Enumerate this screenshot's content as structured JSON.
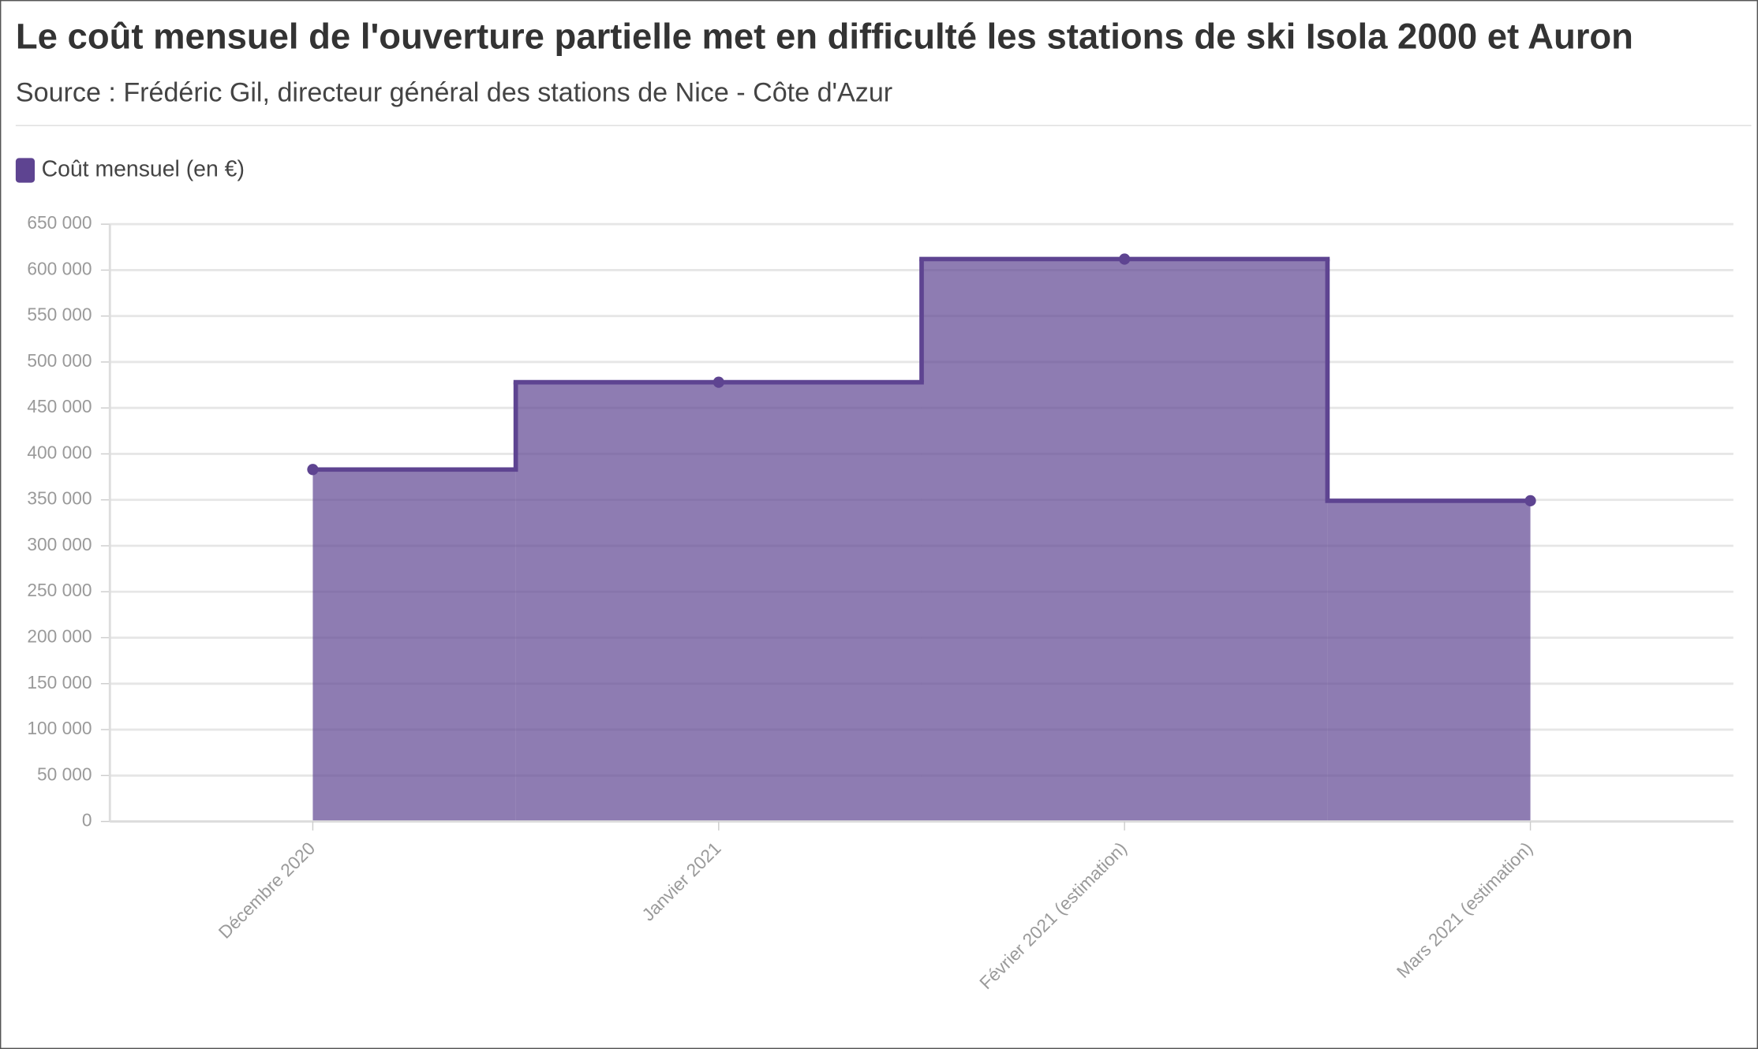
{
  "chart_data": {
    "type": "step-area",
    "title": "Le coût mensuel de l'ouverture partielle met en difficulté les stations de ski Isola 2000 et Auron",
    "subtitle": "Source : Frédéric Gil, directeur général des stations de Nice - Côte d'Azur",
    "categories": [
      "Décembre 2020",
      "Janvier 2021",
      "Février 2021 (estimation)",
      "Mars 2021 (estimation)"
    ],
    "series": [
      {
        "name": "Coût mensuel (en €)",
        "color": "#5e4491",
        "values": [
          383000,
          478000,
          612000,
          349000
        ]
      }
    ],
    "ylim": [
      0,
      650000
    ],
    "yticks": [
      0,
      {
        "value": 50000,
        "label": "50 000"
      },
      {
        "value": 100000,
        "label": "100 000"
      },
      {
        "value": 150000,
        "label": "150 000"
      },
      {
        "value": 200000,
        "label": "200 000"
      },
      {
        "value": 250000,
        "label": "250 000"
      },
      {
        "value": 300000,
        "label": "300 000"
      },
      {
        "value": 350000,
        "label": "350 000"
      },
      {
        "value": 400000,
        "label": "400 000"
      },
      {
        "value": 450000,
        "label": "450 000"
      },
      {
        "value": 500000,
        "label": "500 000"
      },
      {
        "value": 550000,
        "label": "550 000"
      },
      {
        "value": 600000,
        "label": "600 000"
      },
      {
        "value": 650000,
        "label": "650 000"
      }
    ],
    "grid": true,
    "legend": "top-left"
  }
}
